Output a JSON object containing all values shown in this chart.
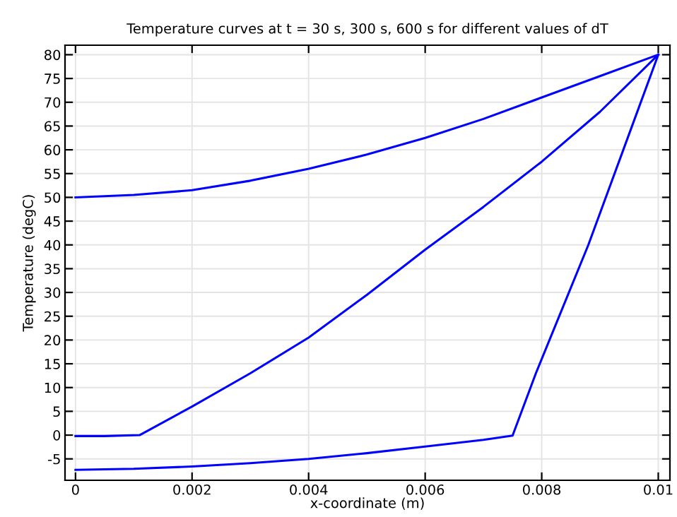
{
  "chart_data": {
    "type": "line",
    "title": "Temperature curves at t = 30 s, 300 s, 600 s for different values of dT",
    "xlabel": "x-coordinate (m)",
    "ylabel": "Temperature (degC)",
    "series": [
      {
        "color": "#0000ff",
        "x": [
          0,
          0.001,
          0.002,
          0.003,
          0.004,
          0.005,
          0.006,
          0.007,
          0.008,
          0.009,
          0.01
        ],
        "values": [
          50,
          50.5,
          51.5,
          53.5,
          56,
          59,
          62.5,
          66.5,
          71,
          75.5,
          80
        ]
      },
      {
        "color": "#0000ff",
        "x": [
          0,
          0.0005,
          0.0011,
          0.002,
          0.003,
          0.004,
          0.005,
          0.006,
          0.007,
          0.008,
          0.009,
          0.01
        ],
        "values": [
          -0.2,
          -0.2,
          0,
          6,
          13,
          20.5,
          29.5,
          39,
          48,
          57.5,
          68,
          80
        ]
      },
      {
        "color": "#0000ff",
        "x": [
          0,
          0.001,
          0.002,
          0.003,
          0.004,
          0.005,
          0.006,
          0.007,
          0.0075,
          0.0079,
          0.0082,
          0.0088,
          0.0094,
          0.01
        ],
        "values": [
          -7.3,
          -7.1,
          -6.6,
          -5.9,
          -5,
          -3.8,
          -2.4,
          -1,
          -0.1,
          13,
          22,
          40,
          60,
          80
        ]
      }
    ],
    "xlim": [
      -0.00018,
      0.0102
    ],
    "ylim": [
      -9.5,
      82
    ],
    "xticks": [
      0,
      0.002,
      0.004,
      0.006,
      0.008,
      0.01
    ],
    "yticks": [
      -5,
      0,
      5,
      10,
      15,
      20,
      25,
      30,
      35,
      40,
      45,
      50,
      55,
      60,
      65,
      70,
      75,
      80
    ],
    "grid": true,
    "legend": false,
    "line_style": "solid",
    "marker": "none"
  }
}
